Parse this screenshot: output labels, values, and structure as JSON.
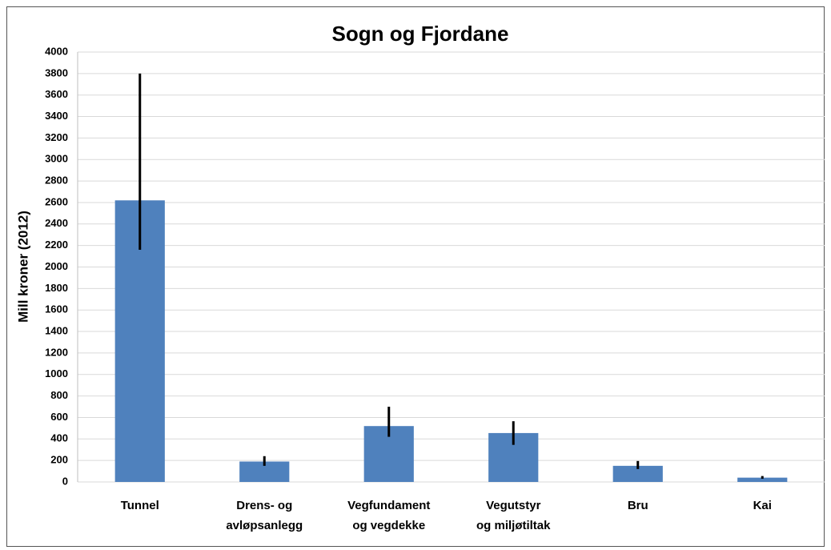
{
  "chart_data": {
    "type": "bar",
    "title": "Sogn og Fjordane",
    "y_label": "Mill kroner (2012)",
    "categories": [
      "Tunnel",
      [
        "Drens- og",
        "avløpsanlegg"
      ],
      [
        "Vegfundament",
        "og vegdekke"
      ],
      [
        "Vegutstyr",
        "og miljøtiltak"
      ],
      "Bru",
      "Kai"
    ],
    "values": [
      2620,
      190,
      520,
      455,
      150,
      40
    ],
    "error_minus": [
      460,
      40,
      100,
      110,
      30,
      10
    ],
    "error_plus": [
      1180,
      50,
      180,
      110,
      45,
      15
    ],
    "color": "#4f81bd",
    "ylim": [
      0,
      4000
    ],
    "yticks": [
      0,
      200,
      400,
      600,
      800,
      1000,
      1200,
      1400,
      1600,
      1800,
      2000,
      2200,
      2400,
      2600,
      2800,
      3000,
      3200,
      3400,
      3600,
      3800,
      4000
    ],
    "grid": true
  }
}
